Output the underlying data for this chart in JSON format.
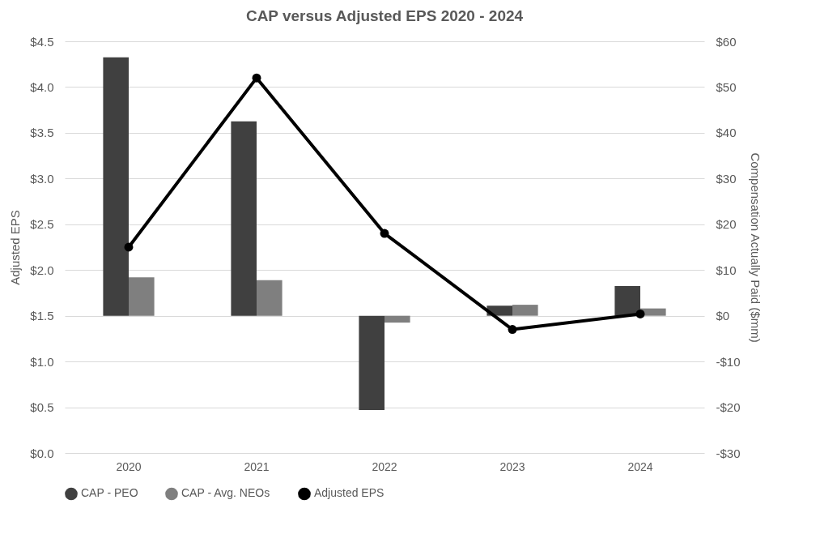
{
  "chart_data": {
    "type": "bar",
    "title": "CAP versus Adjusted EPS 2020 - 2024",
    "ylabel": "Adjusted EPS",
    "y2label": "Compensation Actually Paid ($mm)",
    "categories": [
      "2020",
      "2021",
      "2022",
      "2023",
      "2024"
    ],
    "series": [
      {
        "name": "CAP - PEO",
        "color": "#404040",
        "axis": "y2",
        "values": [
          56.5,
          42.5,
          -20.6,
          2.2,
          6.5
        ]
      },
      {
        "name": "CAP - Avg. NEOs",
        "color": "#7f7f7f",
        "axis": "y2",
        "values": [
          8.4,
          7.8,
          -1.5,
          2.4,
          1.6
        ]
      },
      {
        "name": "Adjusted EPS",
        "type": "line",
        "color": "#000000",
        "axis": "y",
        "marker": "circle",
        "values": [
          2.25,
          4.1,
          2.4,
          1.35,
          1.52
        ]
      }
    ],
    "ylim": [
      0,
      4.5
    ],
    "yticks": [
      {
        "value": 0,
        "label": "$0.0"
      },
      {
        "value": 0.5,
        "label": "$0.5"
      },
      {
        "value": 1,
        "label": "$1.0"
      },
      {
        "value": 1.5,
        "label": "$1.5"
      },
      {
        "value": 2,
        "label": "$2.0"
      },
      {
        "value": 2.5,
        "label": "$2.5"
      },
      {
        "value": 3,
        "label": "$3.0"
      },
      {
        "value": 3.5,
        "label": "$3.5"
      },
      {
        "value": 4,
        "label": "$4.0"
      },
      {
        "value": 4.5,
        "label": "$4.5"
      }
    ],
    "y2lim": [
      -30,
      60
    ],
    "y2ticks": [
      {
        "value": -30,
        "label": "-$30"
      },
      {
        "value": -20,
        "label": "-$20"
      },
      {
        "value": -10,
        "label": "-$10"
      },
      {
        "value": 0,
        "label": "$0"
      },
      {
        "value": 10,
        "label": "$10"
      },
      {
        "value": 20,
        "label": "$20"
      },
      {
        "value": 30,
        "label": "$30"
      },
      {
        "value": 40,
        "label": "$40"
      },
      {
        "value": 50,
        "label": "$50"
      },
      {
        "value": 60,
        "label": "$60"
      }
    ],
    "grid": "y",
    "legend": "bottom"
  }
}
